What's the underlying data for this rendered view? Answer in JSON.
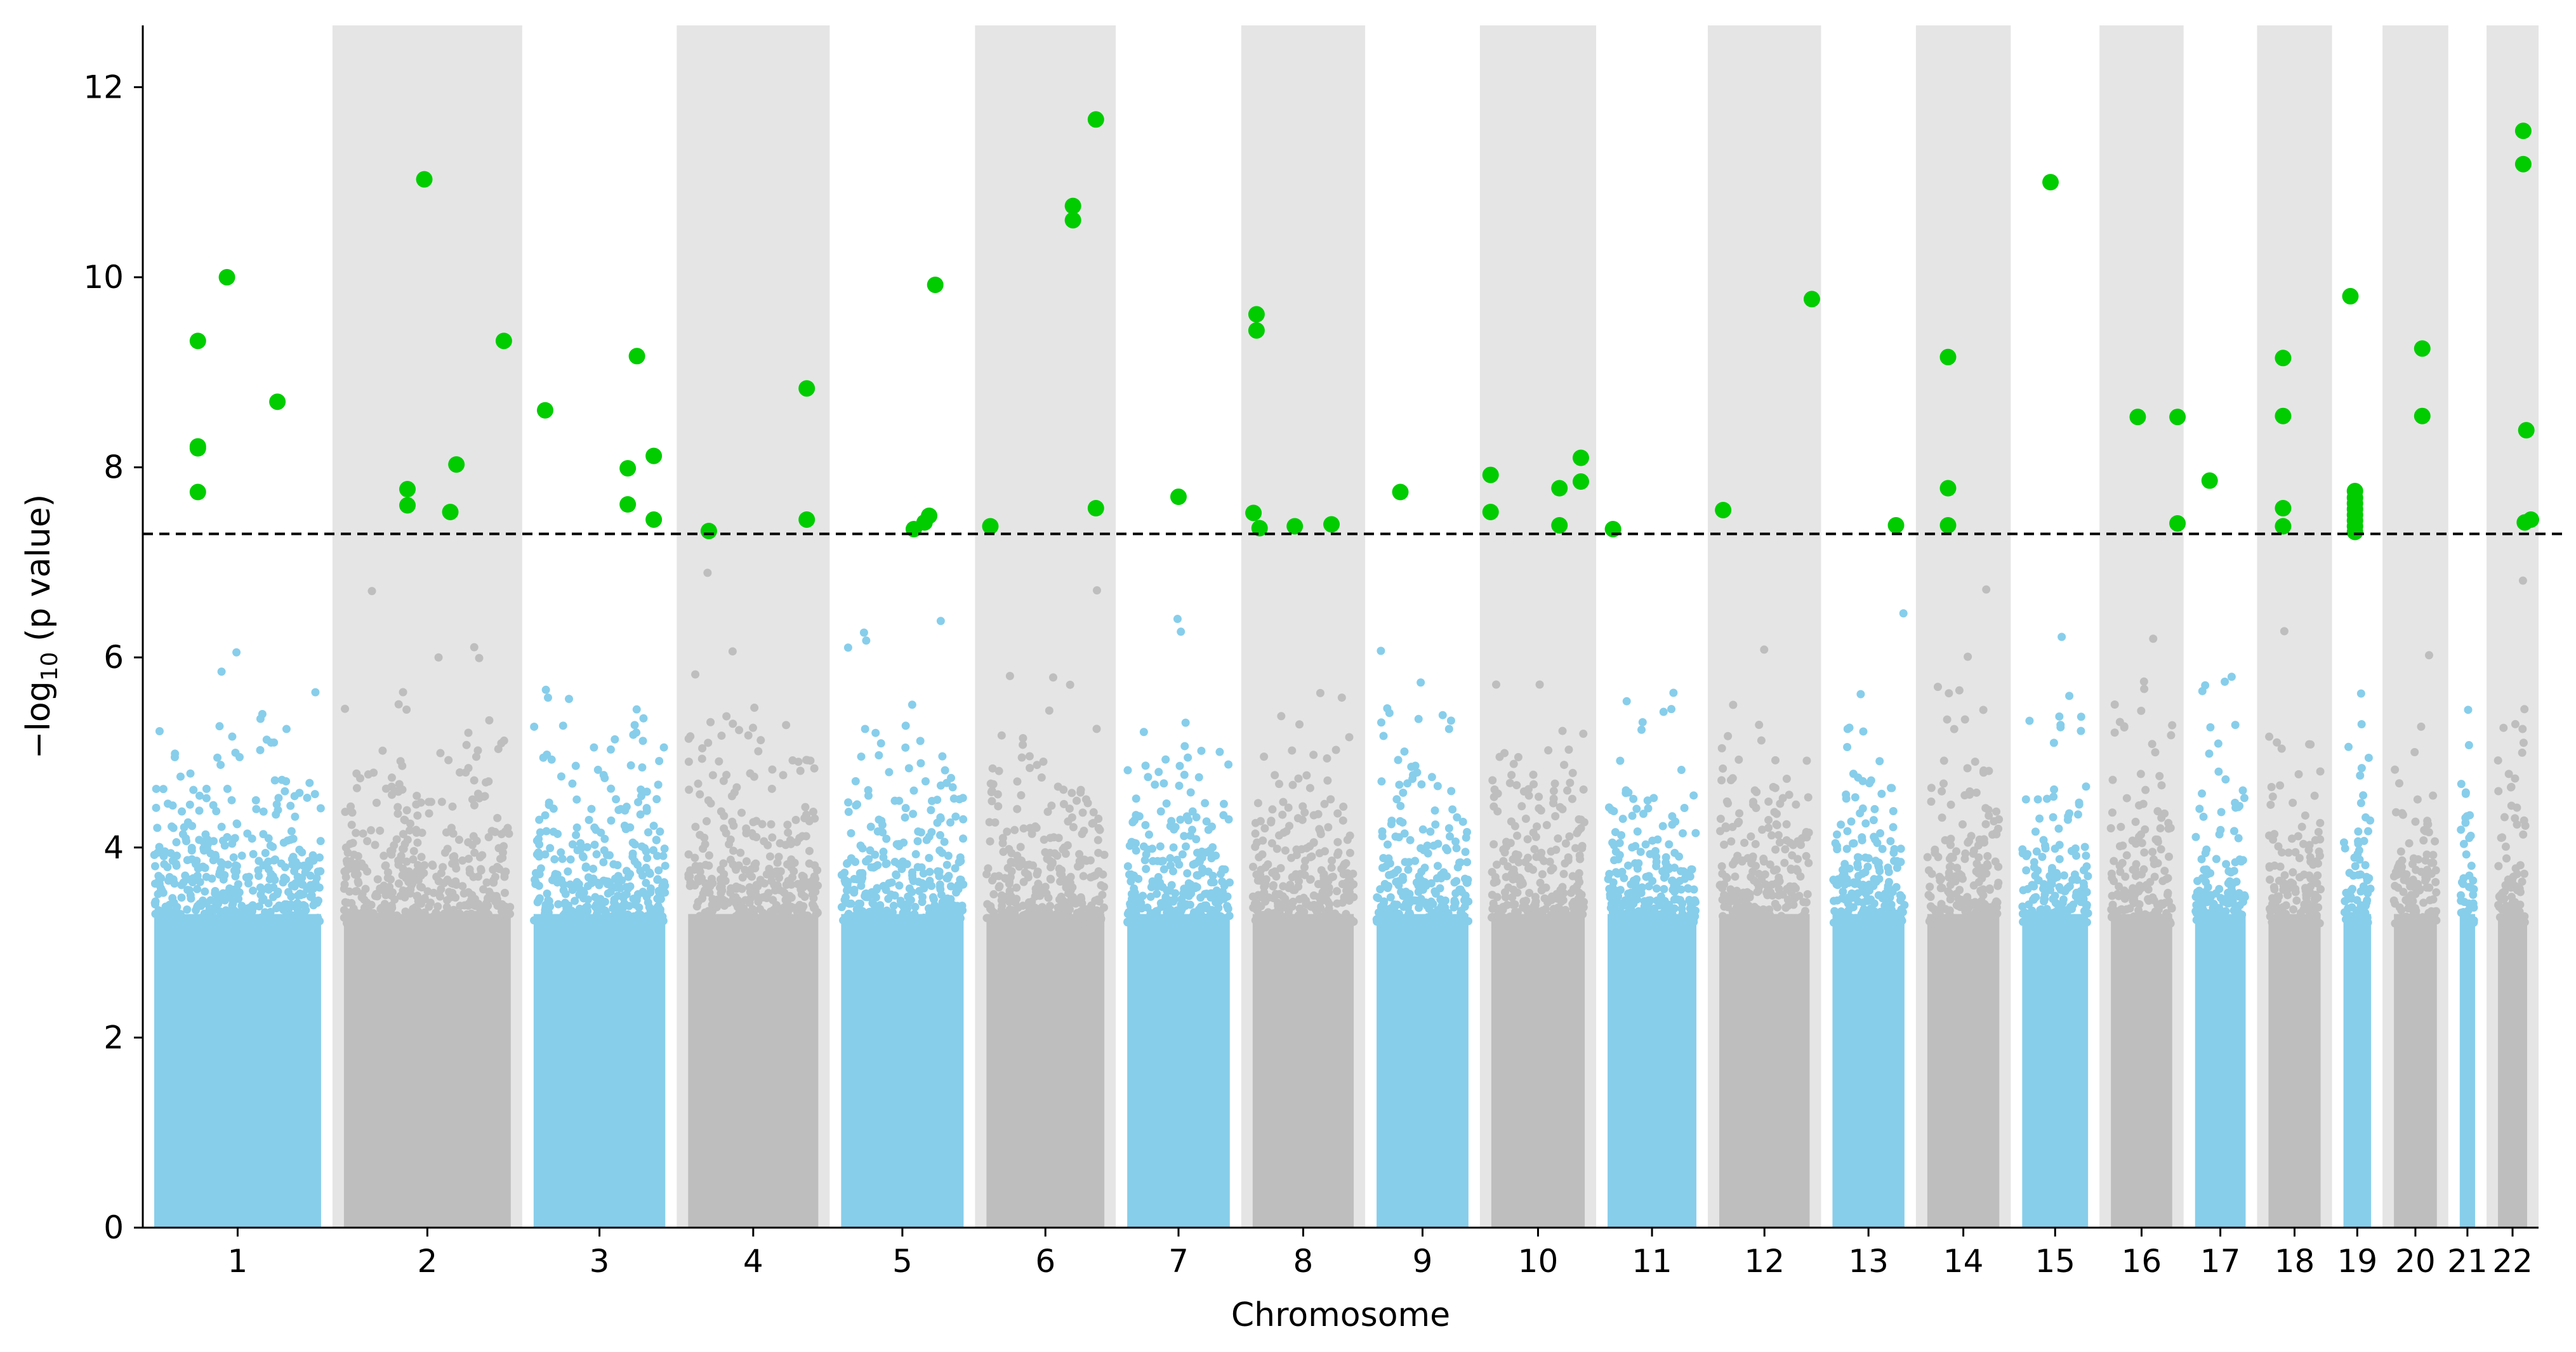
{
  "chart_data": {
    "type": "scatter",
    "subtype": "manhattan",
    "title": "",
    "xlabel": "Chromosome",
    "ylabel_prefix": "−log",
    "ylabel_sub": "10",
    "ylabel_suffix": " (p value)",
    "ylim": [
      0,
      12.65
    ],
    "yticks": [
      0,
      2,
      4,
      6,
      8,
      10,
      12
    ],
    "grid": false,
    "legend": "none",
    "significance_threshold": 7.3,
    "colors": {
      "odd_chromosome": "#87CEEB",
      "even_chromosome": "#BEBEBE",
      "shade_band": "#E5E5E5",
      "significant": "#00CC00",
      "threshold_line": "#000000"
    },
    "chromosomes": [
      {
        "label": "1",
        "start": 0.0,
        "end": 12.4
      },
      {
        "label": "2",
        "start": 12.4,
        "end": 24.8
      },
      {
        "label": "3",
        "start": 24.8,
        "end": 34.9
      },
      {
        "label": "4",
        "start": 34.9,
        "end": 44.9
      },
      {
        "label": "5",
        "start": 44.9,
        "end": 54.4
      },
      {
        "label": "6",
        "start": 54.4,
        "end": 63.6
      },
      {
        "label": "7",
        "start": 63.6,
        "end": 71.8
      },
      {
        "label": "8",
        "start": 71.8,
        "end": 79.9
      },
      {
        "label": "9",
        "start": 79.9,
        "end": 87.4
      },
      {
        "label": "10",
        "start": 87.4,
        "end": 95.0
      },
      {
        "label": "11",
        "start": 95.0,
        "end": 102.3
      },
      {
        "label": "12",
        "start": 102.3,
        "end": 109.7
      },
      {
        "label": "13",
        "start": 109.7,
        "end": 115.9
      },
      {
        "label": "14",
        "start": 115.9,
        "end": 122.1
      },
      {
        "label": "15",
        "start": 122.1,
        "end": 127.9
      },
      {
        "label": "16",
        "start": 127.9,
        "end": 133.4
      },
      {
        "label": "17",
        "start": 133.4,
        "end": 138.2
      },
      {
        "label": "18",
        "start": 138.2,
        "end": 143.1
      },
      {
        "label": "19",
        "start": 143.1,
        "end": 146.4
      },
      {
        "label": "20",
        "start": 146.4,
        "end": 150.7
      },
      {
        "label": "21",
        "start": 150.7,
        "end": 153.2
      },
      {
        "label": "22",
        "start": 153.2,
        "end": 156.6
      }
    ],
    "significant_points": [
      {
        "chr": "1",
        "x": 3.6,
        "y": 9.33
      },
      {
        "chr": "1",
        "x": 3.6,
        "y": 8.22
      },
      {
        "chr": "1",
        "x": 3.6,
        "y": 8.2
      },
      {
        "chr": "1",
        "x": 3.6,
        "y": 7.74
      },
      {
        "chr": "1",
        "x": 5.5,
        "y": 10.0
      },
      {
        "chr": "1",
        "x": 8.8,
        "y": 8.69
      },
      {
        "chr": "2",
        "x": 17.3,
        "y": 7.77
      },
      {
        "chr": "2",
        "x": 17.3,
        "y": 7.6
      },
      {
        "chr": "2",
        "x": 18.4,
        "y": 11.03
      },
      {
        "chr": "2",
        "x": 20.1,
        "y": 7.53
      },
      {
        "chr": "2",
        "x": 20.5,
        "y": 8.03
      },
      {
        "chr": "2",
        "x": 23.6,
        "y": 9.33
      },
      {
        "chr": "3",
        "x": 26.3,
        "y": 8.6
      },
      {
        "chr": "3",
        "x": 31.7,
        "y": 7.99
      },
      {
        "chr": "3",
        "x": 31.7,
        "y": 7.61
      },
      {
        "chr": "3",
        "x": 32.3,
        "y": 9.17
      },
      {
        "chr": "3",
        "x": 33.4,
        "y": 8.12
      },
      {
        "chr": "3",
        "x": 33.4,
        "y": 7.45
      },
      {
        "chr": "4",
        "x": 37.0,
        "y": 7.33
      },
      {
        "chr": "4",
        "x": 43.4,
        "y": 8.83
      },
      {
        "chr": "4",
        "x": 43.4,
        "y": 7.45
      },
      {
        "chr": "5",
        "x": 50.4,
        "y": 7.35
      },
      {
        "chr": "5",
        "x": 51.1,
        "y": 7.42
      },
      {
        "chr": "5",
        "x": 51.4,
        "y": 7.49
      },
      {
        "chr": "5",
        "x": 51.8,
        "y": 9.92
      },
      {
        "chr": "6",
        "x": 55.4,
        "y": 7.38
      },
      {
        "chr": "6",
        "x": 60.8,
        "y": 10.75
      },
      {
        "chr": "6",
        "x": 60.8,
        "y": 10.6
      },
      {
        "chr": "6",
        "x": 62.3,
        "y": 11.66
      },
      {
        "chr": "6",
        "x": 62.3,
        "y": 7.57
      },
      {
        "chr": "7",
        "x": 67.7,
        "y": 7.69
      },
      {
        "chr": "8",
        "x": 72.8,
        "y": 9.61
      },
      {
        "chr": "8",
        "x": 72.8,
        "y": 9.44
      },
      {
        "chr": "8",
        "x": 72.6,
        "y": 7.52
      },
      {
        "chr": "8",
        "x": 73.0,
        "y": 7.36
      },
      {
        "chr": "8",
        "x": 75.3,
        "y": 7.38
      },
      {
        "chr": "8",
        "x": 77.7,
        "y": 7.4
      },
      {
        "chr": "9",
        "x": 82.2,
        "y": 7.74
      },
      {
        "chr": "10",
        "x": 88.1,
        "y": 7.92
      },
      {
        "chr": "10",
        "x": 88.1,
        "y": 7.53
      },
      {
        "chr": "10",
        "x": 92.6,
        "y": 7.78
      },
      {
        "chr": "10",
        "x": 92.6,
        "y": 7.39
      },
      {
        "chr": "10",
        "x": 94.0,
        "y": 8.1
      },
      {
        "chr": "10",
        "x": 94.0,
        "y": 7.85
      },
      {
        "chr": "11",
        "x": 96.1,
        "y": 7.35
      },
      {
        "chr": "12",
        "x": 103.3,
        "y": 7.55
      },
      {
        "chr": "12",
        "x": 109.1,
        "y": 9.77
      },
      {
        "chr": "13",
        "x": 114.6,
        "y": 7.39
      },
      {
        "chr": "14",
        "x": 118.0,
        "y": 9.16
      },
      {
        "chr": "14",
        "x": 118.0,
        "y": 7.78
      },
      {
        "chr": "14",
        "x": 118.0,
        "y": 7.39
      },
      {
        "chr": "15",
        "x": 124.7,
        "y": 11.0
      },
      {
        "chr": "16",
        "x": 130.4,
        "y": 8.53
      },
      {
        "chr": "16",
        "x": 133.0,
        "y": 8.53
      },
      {
        "chr": "16",
        "x": 133.0,
        "y": 7.41
      },
      {
        "chr": "17",
        "x": 135.1,
        "y": 7.86
      },
      {
        "chr": "18",
        "x": 139.9,
        "y": 9.15
      },
      {
        "chr": "18",
        "x": 139.9,
        "y": 8.54
      },
      {
        "chr": "18",
        "x": 139.9,
        "y": 7.57
      },
      {
        "chr": "18",
        "x": 139.9,
        "y": 7.38
      },
      {
        "chr": "19",
        "x": 144.3,
        "y": 9.8
      },
      {
        "chr": "19",
        "x": 144.6,
        "y": 7.75
      },
      {
        "chr": "19",
        "x": 144.6,
        "y": 7.68
      },
      {
        "chr": "19",
        "x": 144.6,
        "y": 7.62
      },
      {
        "chr": "19",
        "x": 144.6,
        "y": 7.56
      },
      {
        "chr": "19",
        "x": 144.6,
        "y": 7.5
      },
      {
        "chr": "19",
        "x": 144.6,
        "y": 7.44
      },
      {
        "chr": "19",
        "x": 144.6,
        "y": 7.38
      },
      {
        "chr": "19",
        "x": 144.6,
        "y": 7.32
      },
      {
        "chr": "20",
        "x": 149.0,
        "y": 9.25
      },
      {
        "chr": "20",
        "x": 149.0,
        "y": 8.54
      },
      {
        "chr": "22",
        "x": 155.6,
        "y": 11.54
      },
      {
        "chr": "22",
        "x": 155.6,
        "y": 11.19
      },
      {
        "chr": "22",
        "x": 155.8,
        "y": 8.39
      },
      {
        "chr": "22",
        "x": 155.7,
        "y": 7.42
      },
      {
        "chr": "22",
        "x": 156.1,
        "y": 7.45
      }
    ]
  }
}
